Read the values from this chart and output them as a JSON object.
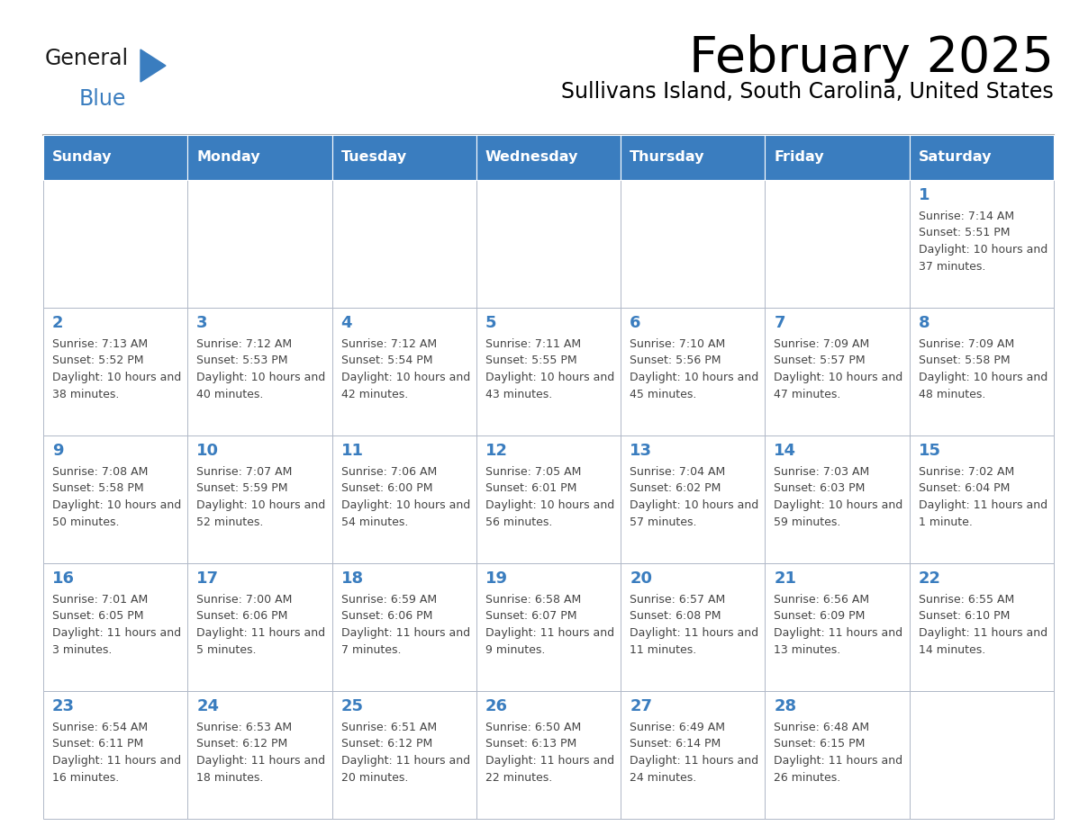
{
  "title": "February 2025",
  "subtitle": "Sullivans Island, South Carolina, United States",
  "days_of_week": [
    "Sunday",
    "Monday",
    "Tuesday",
    "Wednesday",
    "Thursday",
    "Friday",
    "Saturday"
  ],
  "header_bg": "#3a7dbf",
  "header_text": "#ffffff",
  "cell_bg": "#ffffff",
  "cell_border": "#b0b8c8",
  "text_color": "#444444",
  "day_num_color": "#3a7dbf",
  "logo_general_color": "#1a1a1a",
  "logo_blue_color": "#3a7dbf",
  "calendar": [
    [
      null,
      null,
      null,
      null,
      null,
      null,
      {
        "day": "1",
        "sunrise": "7:14 AM",
        "sunset": "5:51 PM",
        "daylight": "10 hours and 37 minutes."
      }
    ],
    [
      {
        "day": "2",
        "sunrise": "7:13 AM",
        "sunset": "5:52 PM",
        "daylight": "10 hours and 38 minutes."
      },
      {
        "day": "3",
        "sunrise": "7:12 AM",
        "sunset": "5:53 PM",
        "daylight": "10 hours and 40 minutes."
      },
      {
        "day": "4",
        "sunrise": "7:12 AM",
        "sunset": "5:54 PM",
        "daylight": "10 hours and 42 minutes."
      },
      {
        "day": "5",
        "sunrise": "7:11 AM",
        "sunset": "5:55 PM",
        "daylight": "10 hours and 43 minutes."
      },
      {
        "day": "6",
        "sunrise": "7:10 AM",
        "sunset": "5:56 PM",
        "daylight": "10 hours and 45 minutes."
      },
      {
        "day": "7",
        "sunrise": "7:09 AM",
        "sunset": "5:57 PM",
        "daylight": "10 hours and 47 minutes."
      },
      {
        "day": "8",
        "sunrise": "7:09 AM",
        "sunset": "5:58 PM",
        "daylight": "10 hours and 48 minutes."
      }
    ],
    [
      {
        "day": "9",
        "sunrise": "7:08 AM",
        "sunset": "5:58 PM",
        "daylight": "10 hours and 50 minutes."
      },
      {
        "day": "10",
        "sunrise": "7:07 AM",
        "sunset": "5:59 PM",
        "daylight": "10 hours and 52 minutes."
      },
      {
        "day": "11",
        "sunrise": "7:06 AM",
        "sunset": "6:00 PM",
        "daylight": "10 hours and 54 minutes."
      },
      {
        "day": "12",
        "sunrise": "7:05 AM",
        "sunset": "6:01 PM",
        "daylight": "10 hours and 56 minutes."
      },
      {
        "day": "13",
        "sunrise": "7:04 AM",
        "sunset": "6:02 PM",
        "daylight": "10 hours and 57 minutes."
      },
      {
        "day": "14",
        "sunrise": "7:03 AM",
        "sunset": "6:03 PM",
        "daylight": "10 hours and 59 minutes."
      },
      {
        "day": "15",
        "sunrise": "7:02 AM",
        "sunset": "6:04 PM",
        "daylight": "11 hours and 1 minute."
      }
    ],
    [
      {
        "day": "16",
        "sunrise": "7:01 AM",
        "sunset": "6:05 PM",
        "daylight": "11 hours and 3 minutes."
      },
      {
        "day": "17",
        "sunrise": "7:00 AM",
        "sunset": "6:06 PM",
        "daylight": "11 hours and 5 minutes."
      },
      {
        "day": "18",
        "sunrise": "6:59 AM",
        "sunset": "6:06 PM",
        "daylight": "11 hours and 7 minutes."
      },
      {
        "day": "19",
        "sunrise": "6:58 AM",
        "sunset": "6:07 PM",
        "daylight": "11 hours and 9 minutes."
      },
      {
        "day": "20",
        "sunrise": "6:57 AM",
        "sunset": "6:08 PM",
        "daylight": "11 hours and 11 minutes."
      },
      {
        "day": "21",
        "sunrise": "6:56 AM",
        "sunset": "6:09 PM",
        "daylight": "11 hours and 13 minutes."
      },
      {
        "day": "22",
        "sunrise": "6:55 AM",
        "sunset": "6:10 PM",
        "daylight": "11 hours and 14 minutes."
      }
    ],
    [
      {
        "day": "23",
        "sunrise": "6:54 AM",
        "sunset": "6:11 PM",
        "daylight": "11 hours and 16 minutes."
      },
      {
        "day": "24",
        "sunrise": "6:53 AM",
        "sunset": "6:12 PM",
        "daylight": "11 hours and 18 minutes."
      },
      {
        "day": "25",
        "sunrise": "6:51 AM",
        "sunset": "6:12 PM",
        "daylight": "11 hours and 20 minutes."
      },
      {
        "day": "26",
        "sunrise": "6:50 AM",
        "sunset": "6:13 PM",
        "daylight": "11 hours and 22 minutes."
      },
      {
        "day": "27",
        "sunrise": "6:49 AM",
        "sunset": "6:14 PM",
        "daylight": "11 hours and 24 minutes."
      },
      {
        "day": "28",
        "sunrise": "6:48 AM",
        "sunset": "6:15 PM",
        "daylight": "11 hours and 26 minutes."
      },
      null
    ]
  ]
}
